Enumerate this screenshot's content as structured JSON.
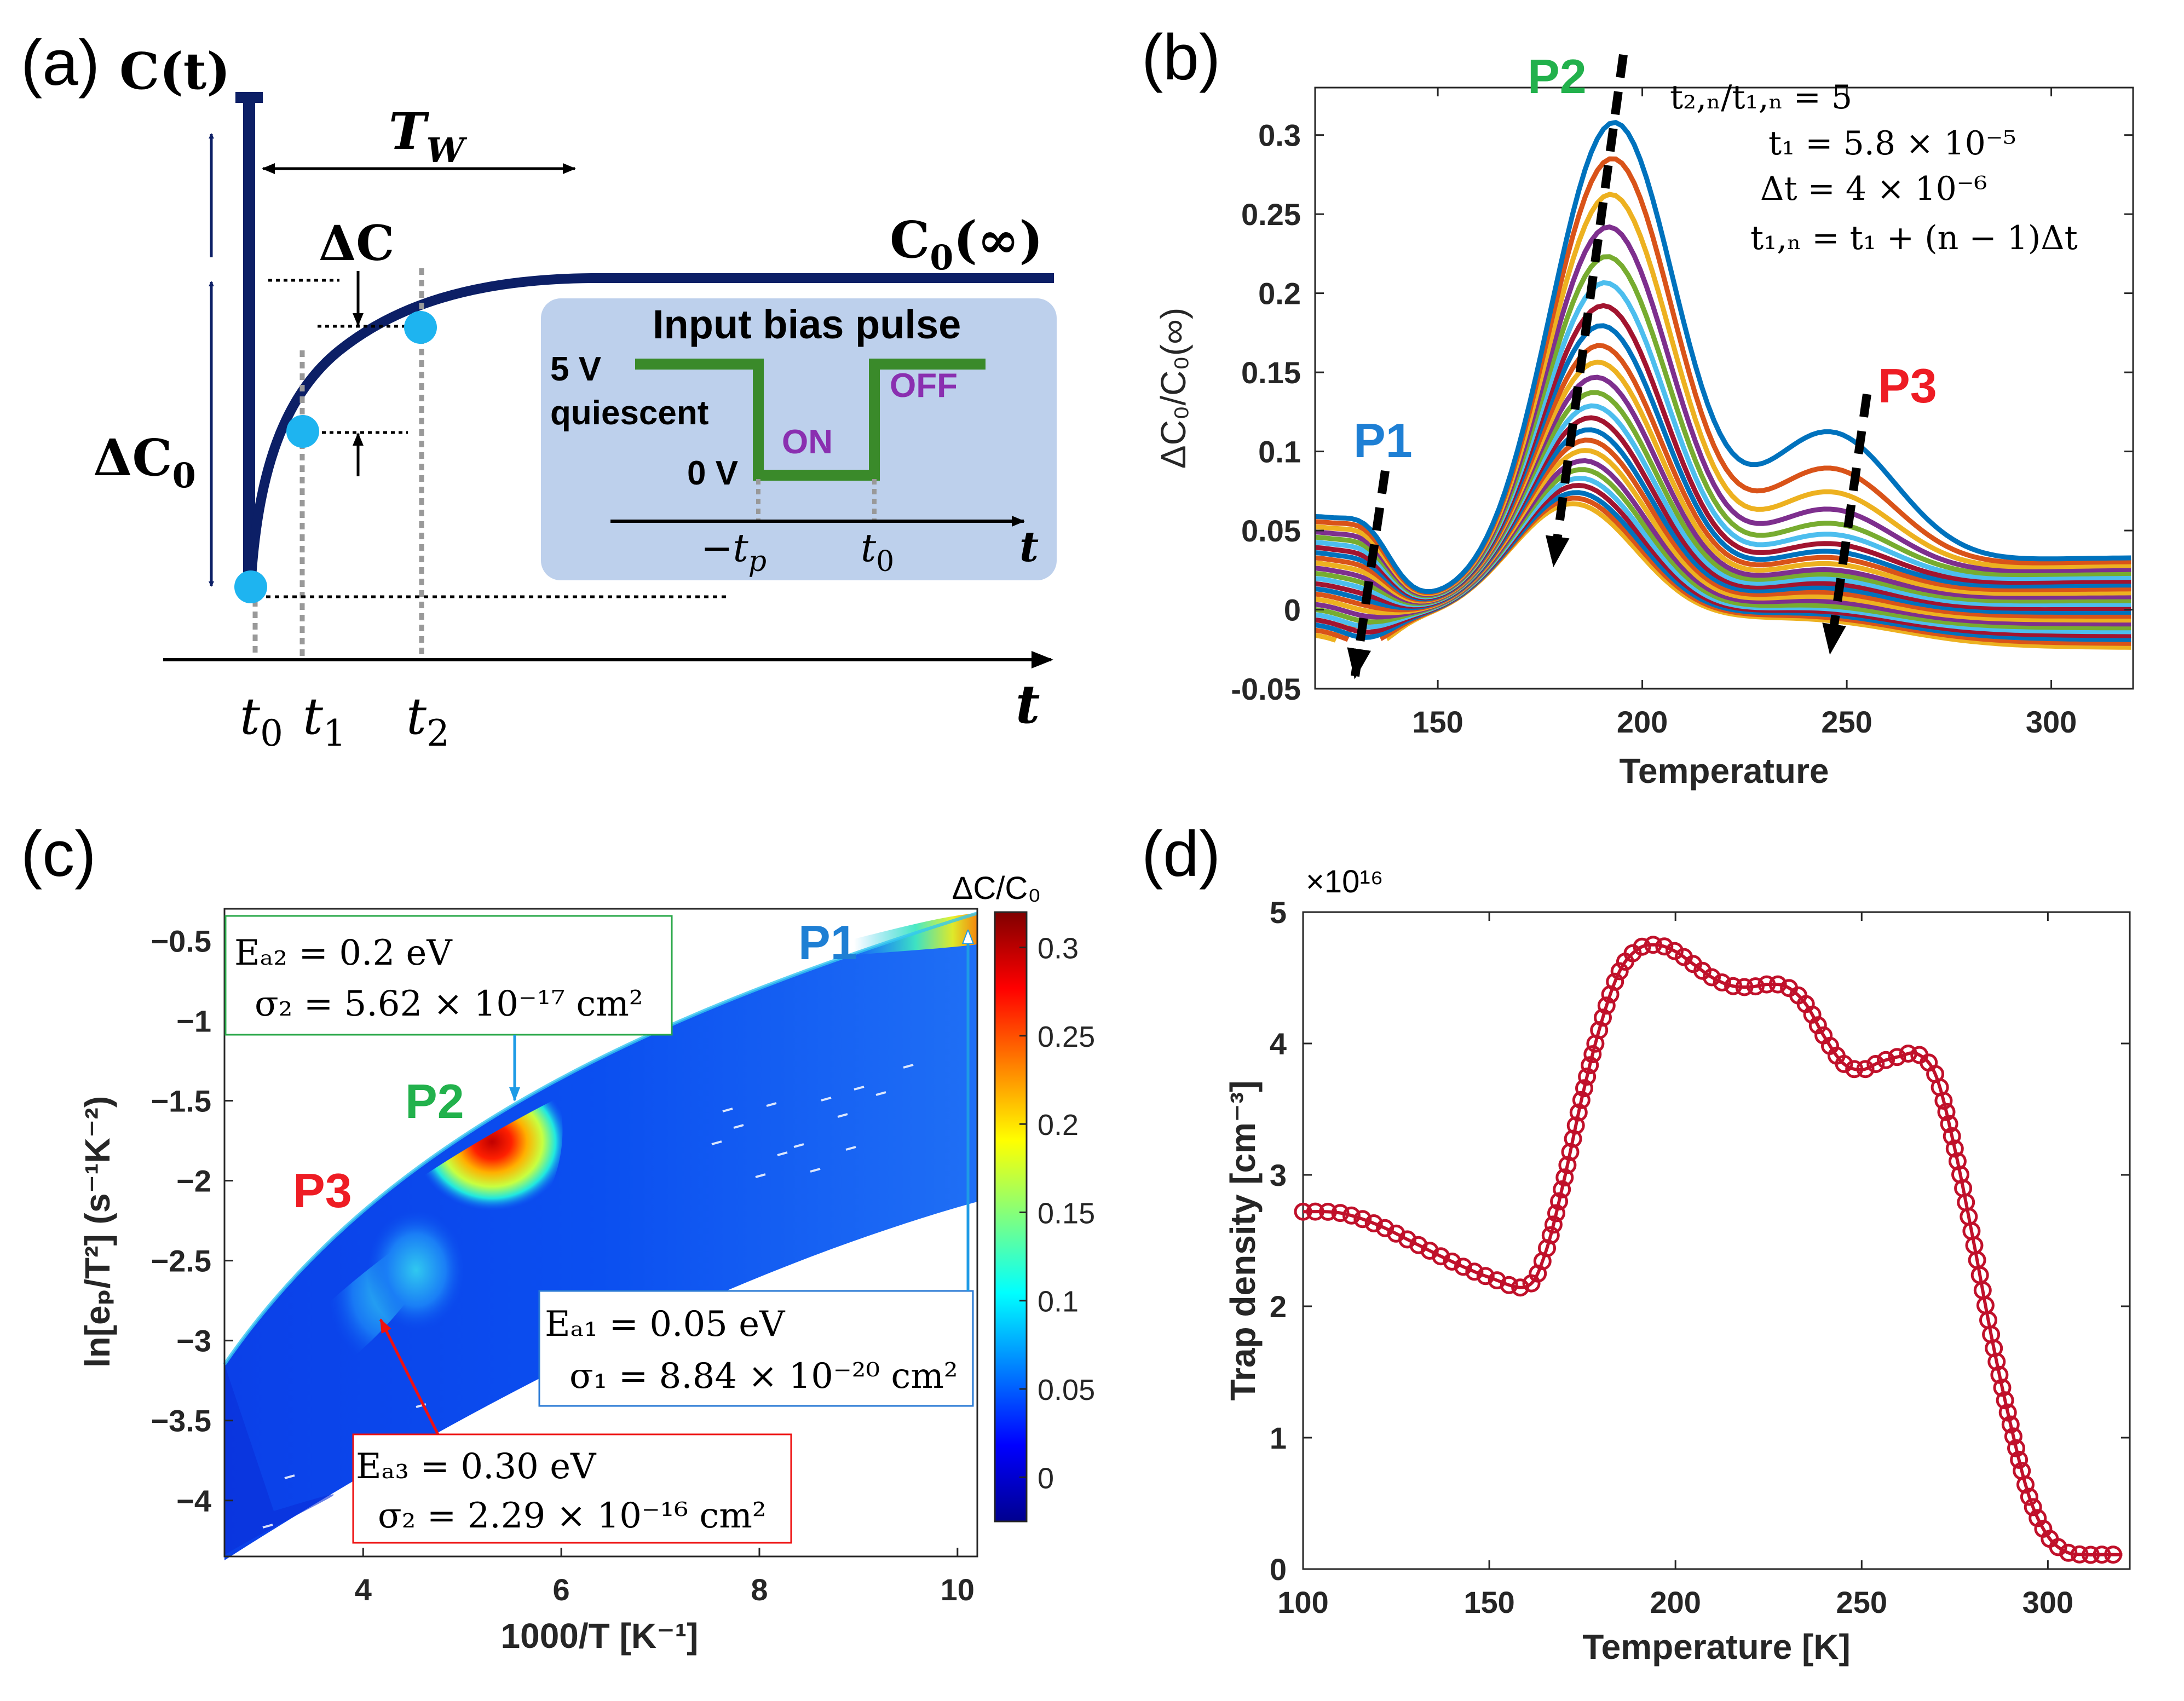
{
  "panels": {
    "a": {
      "label": "(a)",
      "c_t": "C(t)",
      "tw": "T_W",
      "tw_main": "T",
      "tw_sub": "W",
      "dc": "ΔC",
      "dc0_main": "ΔC",
      "dc0_sub": "0",
      "c0inf_main": "C",
      "c0inf_sub": "0",
      "c0inf_tail": "(∞)",
      "axis_t": "t",
      "t0_main": "t",
      "t0_sub": "0",
      "t1_main": "t",
      "t1_sub": "1",
      "t2_main": "t",
      "t2_sub": "2",
      "inset": {
        "title": "Input bias pulse",
        "v5": "5 V",
        "quiescent": "quiescent",
        "v0": "0 V",
        "on": "ON",
        "off": "OFF",
        "tp_main": "−t",
        "tp_sub": "p",
        "t0_main": "t",
        "t0_sub": "0",
        "axis_t": "t"
      },
      "colors": {
        "navy": "#0c1f66",
        "dot": "#1eb4f0",
        "inset_bg": "#bdd0ec",
        "pulse": "#3a8a2a",
        "purple": "#8a2fb0"
      }
    },
    "b": {
      "label": "(b)",
      "eq1": "t₂,ₙ/t₁,ₙ = 5",
      "eq2": "t₁ = 5.8 × 10⁻⁵",
      "eq3": "Δt = 4 × 10⁻⁶",
      "eq4": "t₁,ₙ = t₁ + (n − 1)Δt",
      "p1": "P1",
      "p2": "P2",
      "p3": "P3"
    },
    "c": {
      "label": "(c)",
      "p1": "P1",
      "p2": "P2",
      "p3": "P3",
      "colorbar_title": "ΔC/C₀",
      "box1_l1": "Eₐ₂ = 0.2 eV",
      "box1_l2": "σ₂ = 5.62 × 10⁻¹⁷ cm²",
      "box2_l1": "Eₐ₁ = 0.05 eV",
      "box2_l2": "σ₁ = 8.84 × 10⁻²⁰ cm²",
      "box3_l1": "Eₐ₃ = 0.30 eV",
      "box3_l2": "σ₂ = 2.29 × 10⁻¹⁶ cm²"
    },
    "d": {
      "label": "(d)",
      "exponent_label": "×10¹⁶"
    }
  },
  "chart_data": [
    {
      "id": "b",
      "type": "line",
      "title": "",
      "xlabel": "Temperature",
      "ylabel": "ΔC₀/C₀(∞)",
      "xlim": [
        120,
        320
      ],
      "ylim": [
        -0.05,
        0.33
      ],
      "xticks": [
        "150",
        "200",
        "250",
        "300"
      ],
      "yticks": [
        "-0.05",
        "0",
        "0.05",
        "0.1",
        "0.15",
        "0.2",
        "0.25",
        "0.3"
      ],
      "xtick_values": [
        150,
        200,
        250,
        300
      ],
      "ytick_values": [
        -0.05,
        0,
        0.05,
        0.1,
        0.15,
        0.2,
        0.25,
        0.3
      ],
      "series_count": 24,
      "series_peaks": {
        "p2_peak_values": [
          0.312,
          0.29,
          0.268,
          0.248,
          0.23,
          0.214,
          0.2,
          0.188,
          0.176,
          0.166,
          0.157,
          0.148,
          0.14,
          0.133,
          0.126,
          0.12,
          0.114,
          0.108,
          0.103,
          0.098,
          0.094,
          0.09,
          0.087,
          0.084
        ],
        "p3_peak_values": [
          0.112,
          0.09,
          0.076,
          0.066,
          0.058,
          0.052,
          0.047,
          0.043,
          0.04,
          0.037,
          0.034,
          0.032,
          0.03,
          0.028,
          0.026,
          0.024,
          0.022,
          0.02,
          0.018,
          0.017,
          0.016,
          0.015,
          0.014,
          0.013
        ]
      },
      "series_colors": [
        "#0072bd",
        "#d95319",
        "#edb120",
        "#7e2f8e",
        "#77ac30",
        "#4dbeee",
        "#a2142f",
        "#0072bd",
        "#d95319",
        "#edb120",
        "#7e2f8e",
        "#77ac30",
        "#4dbeee",
        "#a2142f",
        "#0072bd",
        "#d95319",
        "#edb120",
        "#7e2f8e",
        "#77ac30",
        "#4dbeee",
        "#a2142f",
        "#0072bd",
        "#d95319",
        "#edb120"
      ]
    },
    {
      "id": "c",
      "type": "heatmap",
      "xlabel": "1000/T [K⁻¹]",
      "ylabel": "ln[eₚ/T²] (s⁻¹K⁻²)",
      "xlim": [
        2.6,
        10.2
      ],
      "ylim": [
        -4.35,
        -0.3
      ],
      "xticks": [
        "4",
        "6",
        "8",
        "10"
      ],
      "yticks": [
        "−0.5",
        "−1",
        "−1.5",
        "−2",
        "−2.5",
        "−3",
        "−3.5",
        "−4"
      ],
      "xtick_values": [
        4,
        6,
        8,
        10
      ],
      "ytick_values": [
        -0.5,
        -1,
        -1.5,
        -2,
        -2.5,
        -3,
        -3.5,
        -4
      ],
      "colorbar": {
        "label": "ΔC/C₀",
        "range": [
          -0.025,
          0.32
        ],
        "ticks": [
          "0",
          "0.05",
          "0.1",
          "0.15",
          "0.2",
          "0.25",
          "0.3"
        ],
        "tick_values": [
          0,
          0.05,
          0.1,
          0.15,
          0.2,
          0.25,
          0.3
        ]
      }
    },
    {
      "id": "d",
      "type": "line",
      "xlabel": "Temperature [K]",
      "ylabel": "Trap density [cm⁻³]",
      "xlim": [
        100,
        322
      ],
      "ylim": [
        0,
        5
      ],
      "y_scale": "×10¹⁶",
      "xticks": [
        "100",
        "150",
        "200",
        "250",
        "300"
      ],
      "yticks": [
        "0",
        "1",
        "2",
        "3",
        "4",
        "5"
      ],
      "xtick_values": [
        100,
        150,
        200,
        250,
        300
      ],
      "ytick_values": [
        0,
        1,
        2,
        3,
        4,
        5
      ],
      "x": [
        100,
        110,
        120,
        130,
        140,
        150,
        160,
        165,
        170,
        175,
        180,
        185,
        190,
        195,
        200,
        205,
        210,
        215,
        220,
        225,
        230,
        235,
        240,
        245,
        250,
        255,
        260,
        265,
        270,
        275,
        280,
        285,
        290,
        295,
        300,
        305,
        310,
        315,
        320
      ],
      "y": [
        2.72,
        2.71,
        2.62,
        2.48,
        2.34,
        2.22,
        2.15,
        2.4,
        2.95,
        3.6,
        4.15,
        4.55,
        4.72,
        4.75,
        4.7,
        4.6,
        4.5,
        4.44,
        4.43,
        4.45,
        4.43,
        4.3,
        4.05,
        3.85,
        3.8,
        3.86,
        3.9,
        3.92,
        3.75,
        3.2,
        2.5,
        1.75,
        1.1,
        0.55,
        0.25,
        0.13,
        0.11,
        0.11,
        0.11
      ],
      "color": "#c0102a"
    }
  ]
}
